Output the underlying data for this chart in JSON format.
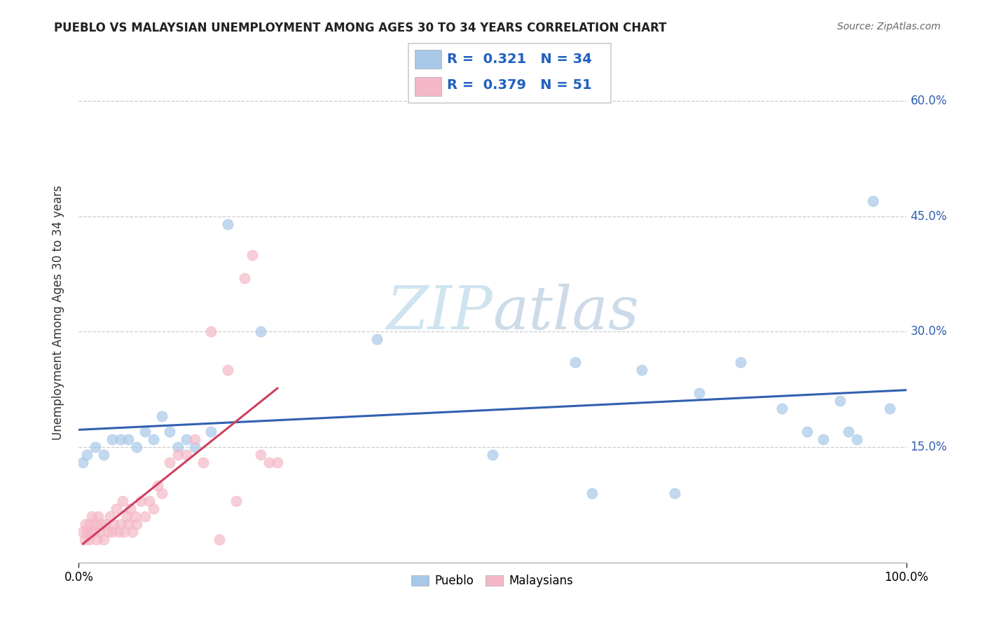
{
  "title": "PUEBLO VS MALAYSIAN UNEMPLOYMENT AMONG AGES 30 TO 34 YEARS CORRELATION CHART",
  "source_text": "Source: ZipAtlas.com",
  "ylabel": "Unemployment Among Ages 30 to 34 years",
  "xlim": [
    0,
    1.0
  ],
  "ylim": [
    0.0,
    0.65
  ],
  "xtick_positions": [
    0.0,
    1.0
  ],
  "xticklabels": [
    "0.0%",
    "100.0%"
  ],
  "ytick_positions": [
    0.15,
    0.3,
    0.45,
    0.6
  ],
  "yticklabels": [
    "15.0%",
    "30.0%",
    "45.0%",
    "60.0%"
  ],
  "pueblo_color": "#a8c8e8",
  "malaysian_color": "#f4b8c8",
  "pueblo_line_color": "#3060b0",
  "malaysian_line_color": "#d04060",
  "legend_text_color": "#2060c0",
  "R_pueblo": 0.321,
  "N_pueblo": 34,
  "R_malaysian": 0.379,
  "N_malaysian": 51,
  "watermark_zip": "ZIP",
  "watermark_atlas": "atlas",
  "watermark_color": "#d0e4f0",
  "background_color": "#ffffff",
  "pueblo_x": [
    0.005,
    0.01,
    0.02,
    0.03,
    0.04,
    0.05,
    0.06,
    0.07,
    0.08,
    0.09,
    0.1,
    0.11,
    0.12,
    0.13,
    0.14,
    0.16,
    0.18,
    0.22,
    0.36,
    0.5,
    0.6,
    0.62,
    0.68,
    0.72,
    0.75,
    0.8,
    0.85,
    0.88,
    0.9,
    0.92,
    0.93,
    0.94,
    0.96,
    0.98
  ],
  "pueblo_y": [
    0.13,
    0.14,
    0.15,
    0.14,
    0.16,
    0.16,
    0.16,
    0.15,
    0.17,
    0.16,
    0.19,
    0.17,
    0.15,
    0.16,
    0.15,
    0.17,
    0.44,
    0.3,
    0.29,
    0.14,
    0.26,
    0.09,
    0.25,
    0.09,
    0.22,
    0.26,
    0.2,
    0.17,
    0.16,
    0.21,
    0.17,
    0.16,
    0.47,
    0.2
  ],
  "malaysian_x": [
    0.005,
    0.007,
    0.008,
    0.01,
    0.012,
    0.013,
    0.015,
    0.016,
    0.018,
    0.02,
    0.022,
    0.023,
    0.025,
    0.027,
    0.03,
    0.032,
    0.035,
    0.038,
    0.04,
    0.042,
    0.045,
    0.048,
    0.05,
    0.053,
    0.055,
    0.058,
    0.06,
    0.062,
    0.065,
    0.068,
    0.07,
    0.075,
    0.08,
    0.085,
    0.09,
    0.095,
    0.1,
    0.11,
    0.12,
    0.13,
    0.14,
    0.15,
    0.16,
    0.17,
    0.18,
    0.19,
    0.2,
    0.21,
    0.22,
    0.23,
    0.24
  ],
  "malaysian_y": [
    0.04,
    0.03,
    0.05,
    0.04,
    0.03,
    0.05,
    0.04,
    0.06,
    0.04,
    0.05,
    0.03,
    0.06,
    0.04,
    0.05,
    0.03,
    0.05,
    0.04,
    0.06,
    0.04,
    0.05,
    0.07,
    0.04,
    0.05,
    0.08,
    0.04,
    0.06,
    0.05,
    0.07,
    0.04,
    0.06,
    0.05,
    0.08,
    0.06,
    0.08,
    0.07,
    0.1,
    0.09,
    0.13,
    0.14,
    0.14,
    0.16,
    0.13,
    0.3,
    0.03,
    0.25,
    0.08,
    0.37,
    0.4,
    0.14,
    0.13,
    0.13
  ],
  "grid_color": "#cccccc",
  "ytick_color": "#3060b0",
  "legend_border_color": "#cccccc",
  "marker_size": 120,
  "marker_alpha": 0.7
}
